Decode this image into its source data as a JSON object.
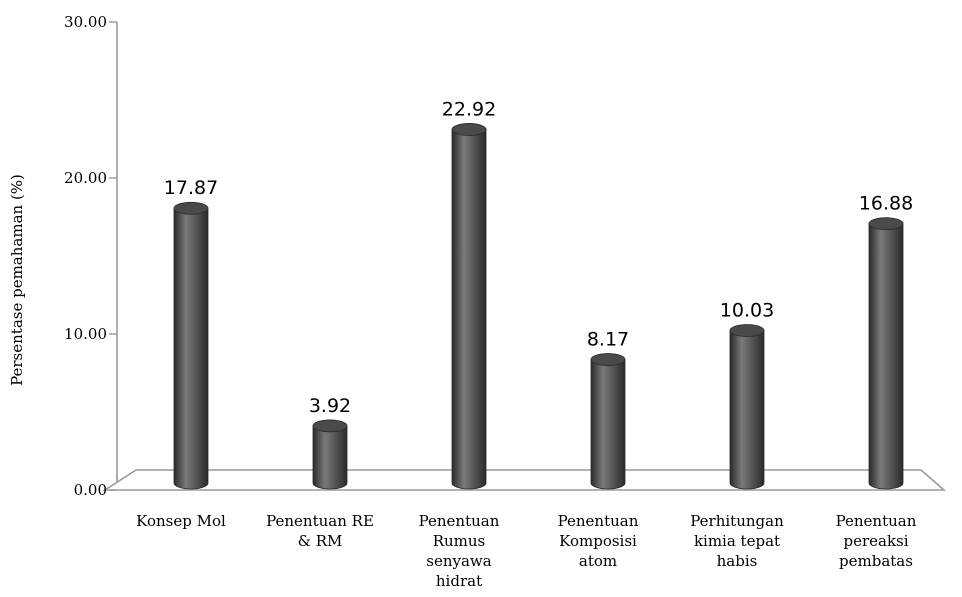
{
  "chart_data": {
    "type": "bar",
    "style": "3d-cylinder",
    "title": "",
    "xlabel": "",
    "ylabel": "Persentase pemahaman (%)",
    "ylim": [
      0,
      30
    ],
    "y_ticks": [
      "0.00",
      "10.00",
      "20.00",
      "30.00"
    ],
    "grid": false,
    "legend": "none",
    "categories": [
      [
        "Konsep Mol"
      ],
      [
        "Penentuan RE",
        "& RM"
      ],
      [
        "Penentuan",
        "Rumus",
        "senyawa",
        "hidrat"
      ],
      [
        "Penentuan",
        "Komposisi",
        "atom"
      ],
      [
        "Perhitungan",
        "kimia tepat",
        "habis"
      ],
      [
        "Penentuan",
        "pereaksi",
        "pembatas"
      ]
    ],
    "values": [
      17.87,
      3.92,
      22.92,
      8.17,
      10.03,
      16.88
    ],
    "data_labels": [
      "17.87",
      "3.92",
      "22.92",
      "8.17",
      "10.03",
      "16.88"
    ],
    "colors": {
      "bar": "#4a4a4a",
      "bar_highlight": "#7a7a7a",
      "bar_dark": "#2a2a2a",
      "axis": "#9a9a9a",
      "floor": "#ffffff"
    }
  }
}
